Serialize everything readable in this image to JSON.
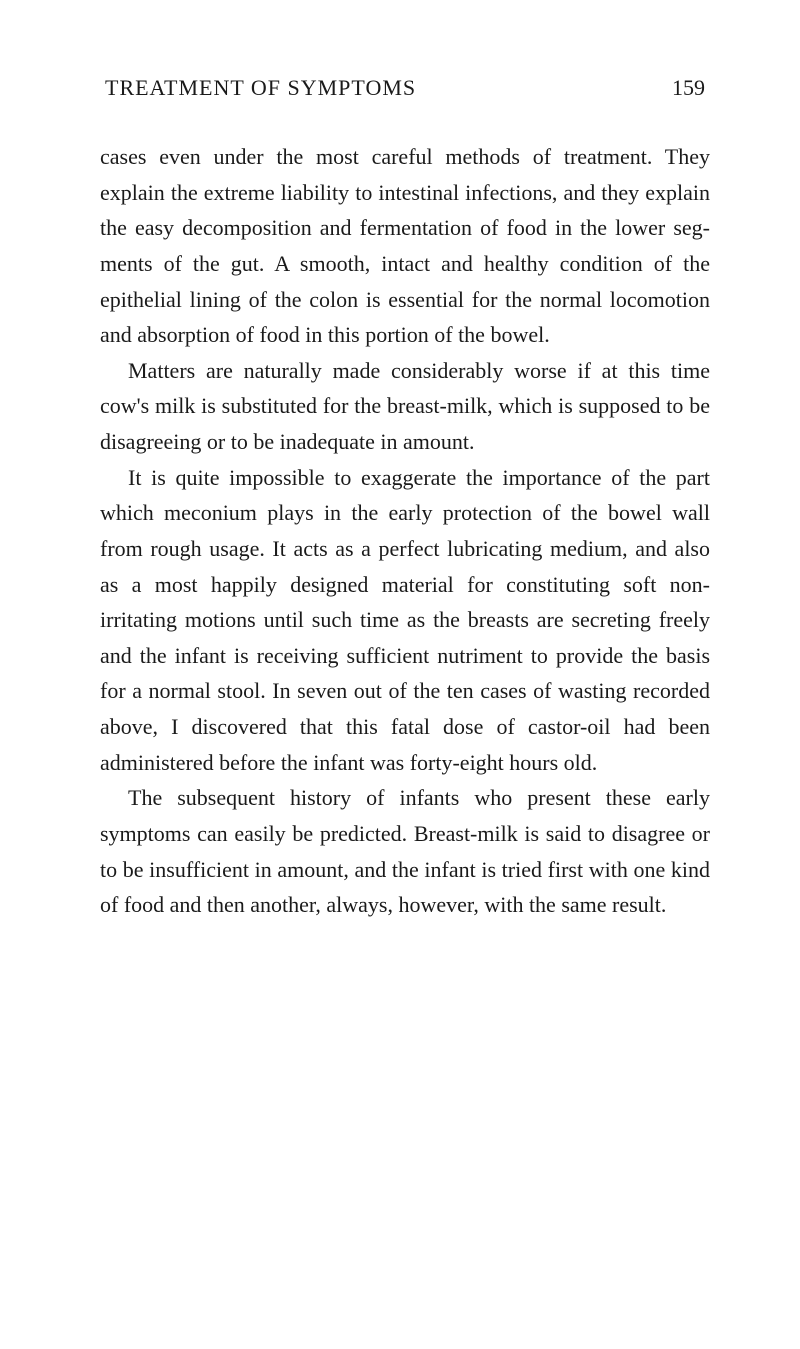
{
  "header": {
    "title": "TREATMENT OF SYMPTOMS",
    "pageNumber": "159"
  },
  "paragraphs": {
    "p1": "cases even under the most careful methods of treat­ment. They explain the extreme liability to in­testinal infections, and they explain the easy decom­position and fermentation of food in the lower seg­ments of the gut. A smooth, intact and healthy condition of the epithelial lining of the colon is essential for the normal locomotion and absorption of food in this portion of the bowel.",
    "p2": "Matters are naturally made considerably worse if at this time cow's milk is substituted for the breast-milk, which is supposed to be disagreeing or to be inadequate in amount.",
    "p3": "It is quite impossible to exaggerate the impor­tance of the part which meconium plays in the early protection of the bowel wall from rough usage. It acts as a perfect lubricating medium, and also as a most happily designed material for constituting soft non-irritating motions until such time as the breasts are secreting freely and the infant is receiving suffi­cient nutriment to provide the basis for a normal stool. In seven out of the ten cases of wasting recorded above, I discovered that this fatal dose of castor-oil had been administered before the infant was forty-eight hours old.",
    "p4": "The subsequent history of infants who present these early symptoms can easily be predicted. Breast-milk is said to disagree or to be insufficient in amount, and the infant is tried first with one kind of food and then another, always, however, with the same result."
  },
  "styling": {
    "backgroundColor": "#ffffff",
    "textColor": "#1a1a1a",
    "fontSize": 22,
    "lineHeight": 1.62,
    "pageWidth": 800,
    "pageHeight": 1349,
    "fontFamily": "Georgia, Times New Roman, serif",
    "textAlign": "justify",
    "textIndent": 28
  }
}
